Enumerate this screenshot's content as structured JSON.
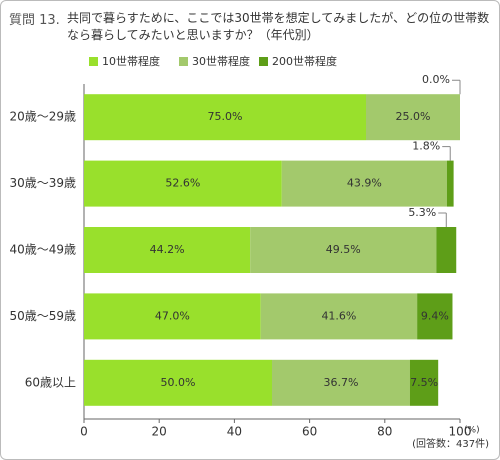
{
  "chart_data": {
    "type": "stacked-bar-horizontal",
    "question": "質問 13.",
    "title": "共同で暮らすために、ここでは30世帯を想定してみましたが、どの位の世帯数なら暮らしてみたいと思いますか？（年代別）",
    "categories": [
      "20歳〜29歳",
      "30歳〜39歳",
      "40歳〜49歳",
      "50歳〜59歳",
      "60歳以上"
    ],
    "series": [
      {
        "name": "10世帯程度",
        "color": "#99e02c",
        "values": [
          75.0,
          52.6,
          44.2,
          47.0,
          50.0
        ],
        "value_labels": [
          "75.0%",
          "52.6%",
          "44.2%",
          "47.0%",
          "50.0%"
        ]
      },
      {
        "name": "30世帯程度",
        "color": "#a3c96c",
        "values": [
          25.0,
          43.9,
          49.5,
          41.6,
          36.7
        ],
        "value_labels": [
          "25.0%",
          "43.9%",
          "49.5%",
          "41.6%",
          "36.7%"
        ]
      },
      {
        "name": "200世帯程度",
        "color": "#5e9e18",
        "values": [
          0.0,
          1.8,
          5.3,
          9.4,
          7.5
        ],
        "value_labels": [
          "0.0%",
          "1.8%",
          "5.3%",
          "9.4%",
          "7.5%"
        ]
      }
    ],
    "xlim": [
      0,
      100
    ],
    "xticks": [
      0,
      20,
      40,
      60,
      80,
      100
    ],
    "x_unit": "(%)",
    "note": "(回答数：437件)"
  }
}
